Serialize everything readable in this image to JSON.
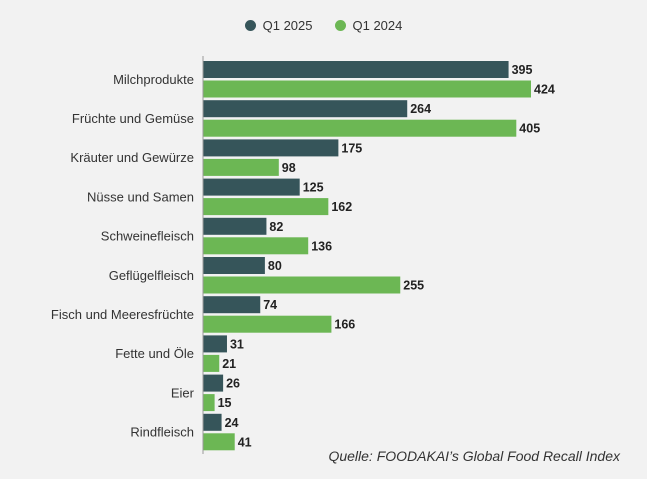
{
  "chart_data": {
    "type": "bar",
    "orientation": "horizontal",
    "categories": [
      "Milchprodukte",
      "Früchte und Gemüse",
      "Kräuter und Gewürze",
      "Nüsse und Samen",
      "Schweinefleisch",
      "Geflügelfleisch",
      "Fisch und Meeresfrüchte",
      "Fette und Öle",
      "Eier",
      "Rindfleisch"
    ],
    "series": [
      {
        "name": "Q1 2025",
        "color": "#36555a",
        "values": [
          395,
          264,
          175,
          125,
          82,
          80,
          74,
          31,
          26,
          24
        ]
      },
      {
        "name": "Q1 2024",
        "color": "#6cb754",
        "values": [
          424,
          405,
          98,
          162,
          136,
          255,
          166,
          21,
          15,
          41
        ]
      }
    ],
    "xlim": [
      0,
      424
    ],
    "grid": false,
    "data_labels": true,
    "legend_position": "top-center"
  },
  "source_note": "Quelle: FOODAKAI’s Global Food Recall Index"
}
